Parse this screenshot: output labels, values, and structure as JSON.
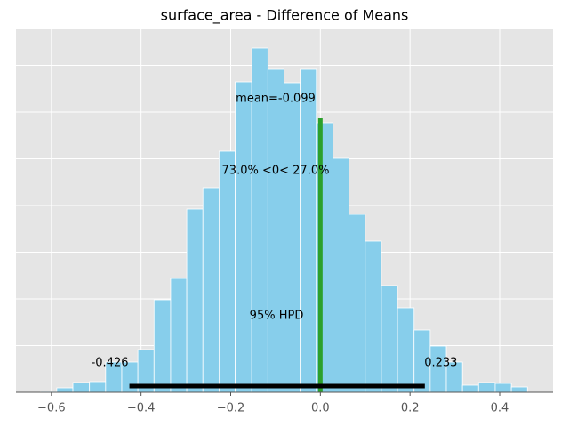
{
  "chart_data": {
    "type": "histogram",
    "title": "surface_area - Difference of Means",
    "bins": [
      -0.624,
      -0.588,
      -0.552,
      -0.515,
      -0.479,
      -0.443,
      -0.407,
      -0.371,
      -0.334,
      -0.298,
      -0.262,
      -0.226,
      -0.19,
      -0.153,
      -0.117,
      -0.081,
      -0.045,
      -0.009,
      0.028,
      0.064,
      0.1,
      0.136,
      0.172,
      0.209,
      0.245,
      0.281,
      0.317,
      0.353,
      0.39,
      0.426,
      0.462
    ],
    "values": [
      1,
      5,
      11,
      12,
      34,
      34,
      48,
      104,
      128,
      206,
      230,
      271,
      349,
      387,
      363,
      348,
      363,
      303,
      263,
      200,
      170,
      120,
      95,
      70,
      52,
      34,
      8,
      11,
      10,
      6
    ],
    "color": "#87ceeb",
    "edge_color": "#ffffff",
    "xlim": [
      -0.679,
      0.519
    ],
    "ylim": [
      0,
      408
    ],
    "xticks": [
      {
        "value": -0.6,
        "label": "−0.6"
      },
      {
        "value": -0.4,
        "label": "−0.4"
      },
      {
        "value": -0.2,
        "label": "−0.2"
      },
      {
        "value": 0,
        "label": "0.0"
      },
      0.2,
      0.4
    ],
    "yticks": [
      52.5,
      105,
      157.5,
      210,
      262.5,
      315,
      367.5
    ],
    "grid": true,
    "ref_val": 0,
    "ref_color": "#2ca02c",
    "mean_label": "mean=-0.099",
    "ref_label": "73.0% <0< 27.0%",
    "hpd_label": "95% HPD",
    "hpd": [
      {
        "value": -0.426,
        "label": "-0.426"
      },
      {
        "value": 0.233,
        "label": "0.233"
      }
    ],
    "hpd_color": "#000000"
  }
}
